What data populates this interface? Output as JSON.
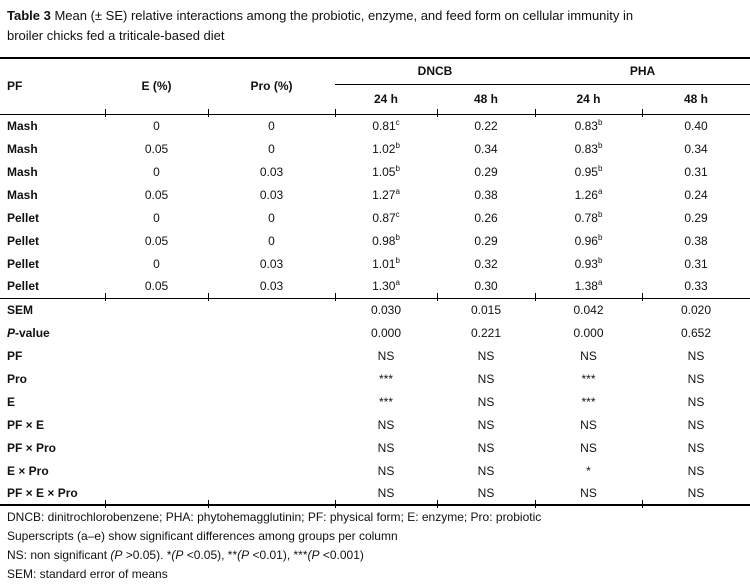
{
  "title": {
    "bold": "Table 3",
    "line1_rest": " Mean (± SE) relative interactions among the probiotic, enzyme, and feed form on cellular immunity in",
    "line2": "broiler chicks fed a triticale-based diet"
  },
  "table": {
    "headers": {
      "pf": "PF",
      "e": "E (%)",
      "pro": "Pro (%)",
      "dncb": "DNCB",
      "pha": "PHA",
      "sub": [
        "24 h",
        "48 h",
        "24 h",
        "48 h"
      ]
    },
    "treatment_rows": [
      {
        "pf": "Mash",
        "e": "0",
        "pro": "0",
        "dncb24": "0.81",
        "dncb24_sup": "c",
        "dncb48": "0.22",
        "pha24": "0.83",
        "pha24_sup": "b",
        "pha48": "0.40"
      },
      {
        "pf": "Mash",
        "e": "0.05",
        "pro": "0",
        "dncb24": "1.02",
        "dncb24_sup": "b",
        "dncb48": "0.34",
        "pha24": "0.83",
        "pha24_sup": "b",
        "pha48": "0.34"
      },
      {
        "pf": "Mash",
        "e": "0",
        "pro": "0.03",
        "dncb24": "1.05",
        "dncb24_sup": "b",
        "dncb48": "0.29",
        "pha24": "0.95",
        "pha24_sup": "b",
        "pha48": "0.31"
      },
      {
        "pf": "Mash",
        "e": "0.05",
        "pro": "0.03",
        "dncb24": "1.27",
        "dncb24_sup": "a",
        "dncb48": "0.38",
        "pha24": "1.26",
        "pha24_sup": "a",
        "pha48": "0.24"
      },
      {
        "pf": "Pellet",
        "e": "0",
        "pro": "0",
        "dncb24": "0.87",
        "dncb24_sup": "c",
        "dncb48": "0.26",
        "pha24": "0.78",
        "pha24_sup": "b",
        "pha48": "0.29"
      },
      {
        "pf": "Pellet",
        "e": "0.05",
        "pro": "0",
        "dncb24": "0.98",
        "dncb24_sup": "b",
        "dncb48": "0.29",
        "pha24": "0.96",
        "pha24_sup": "b",
        "pha48": "0.38"
      },
      {
        "pf": "Pellet",
        "e": "0",
        "pro": "0.03",
        "dncb24": "1.01",
        "dncb24_sup": "b",
        "dncb48": "0.32",
        "pha24": "0.93",
        "pha24_sup": "b",
        "pha48": "0.31"
      },
      {
        "pf": "Pellet",
        "e": "0.05",
        "pro": "0.03",
        "dncb24": "1.30",
        "dncb24_sup": "a",
        "dncb48": "0.30",
        "pha24": "1.38",
        "pha24_sup": "a",
        "pha48": "0.33"
      }
    ],
    "stat_rows": [
      {
        "label": "SEM",
        "v1": "0.030",
        "v2": "0.015",
        "v3": "0.042",
        "v4": "0.020"
      },
      {
        "label_i": "P",
        "label_rest": "-value",
        "v1": "0.000",
        "v2": "0.221",
        "v3": "0.000",
        "v4": "0.652"
      },
      {
        "label": "PF",
        "v1": "NS",
        "v2": "NS",
        "v3": "NS",
        "v4": "NS"
      },
      {
        "label": "Pro",
        "v1": "***",
        "v2": "NS",
        "v3": "***",
        "v4": "NS"
      },
      {
        "label": "E",
        "v1": "***",
        "v2": "NS",
        "v3": "***",
        "v4": "NS"
      },
      {
        "label": "PF × E",
        "v1": "NS",
        "v2": "NS",
        "v3": "NS",
        "v4": "NS"
      },
      {
        "label": "PF × Pro",
        "v1": "NS",
        "v2": "NS",
        "v3": "NS",
        "v4": "NS"
      },
      {
        "label": "E × Pro",
        "v1": "NS",
        "v2": "NS",
        "v3": "*",
        "v4": "NS"
      },
      {
        "label": "PF × E × Pro",
        "v1": "NS",
        "v2": "NS",
        "v3": "NS",
        "v4": "NS"
      }
    ]
  },
  "footnotes": {
    "line1": "DNCB: dinitrochlorobenzene; PHA: phytohemagglutinin; PF: physical form; E: enzyme; Pro: probiotic",
    "line2": "Superscripts (a–e) show significant differences among groups per column",
    "line3": {
      "s0": "NS: non significant ",
      "s1": "(P",
      "s2": " >0.05). *",
      "s3": "(P",
      "s4": " <0.05), **",
      "s5": "(P",
      "s6": " <0.01), ***",
      "s7": "(P",
      "s8": " <0.001)"
    },
    "line4": "SEM: standard error of means"
  }
}
